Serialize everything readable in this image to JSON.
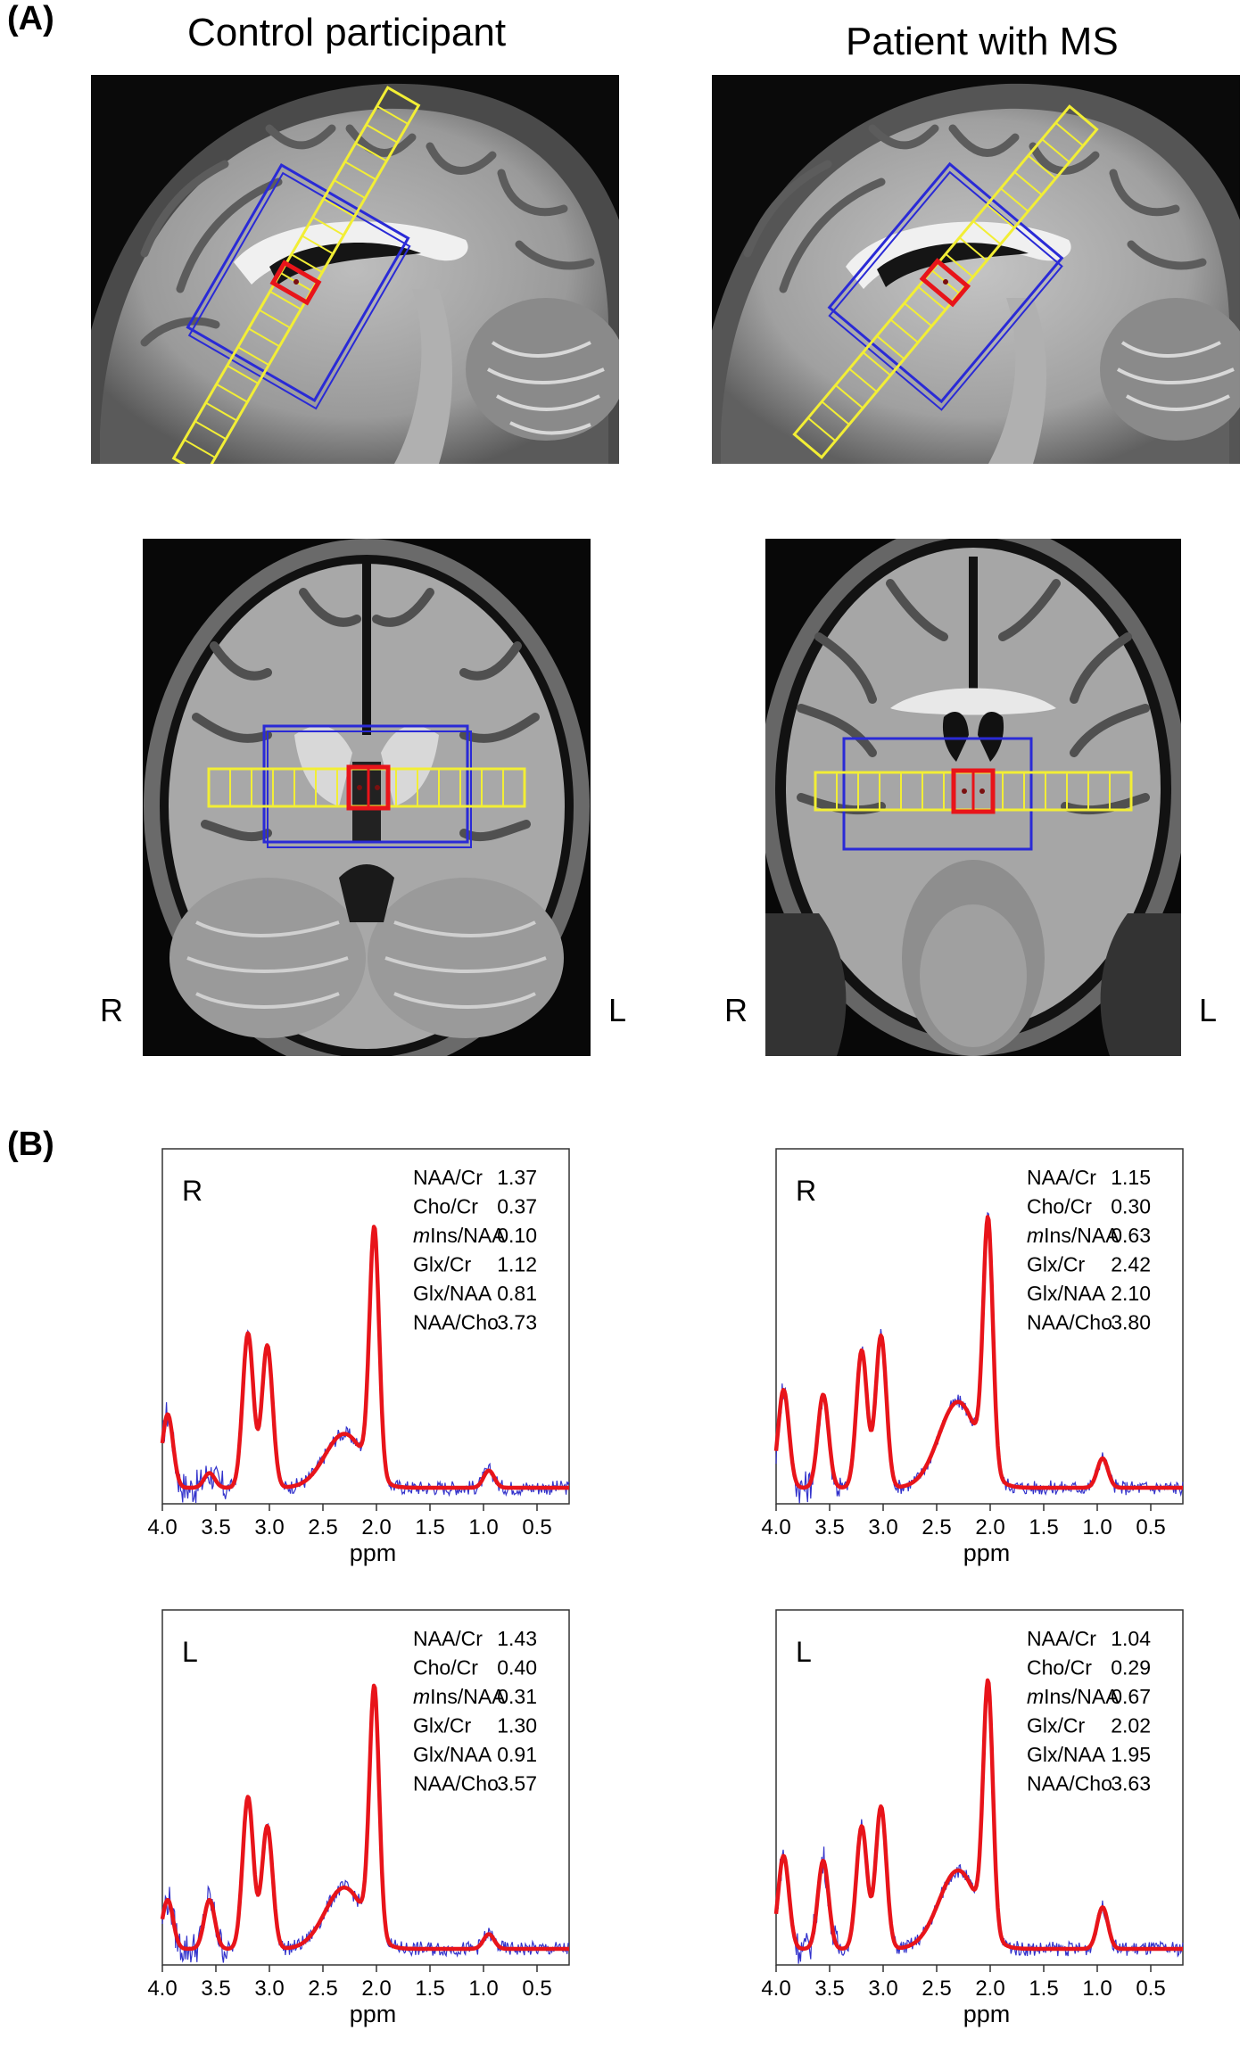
{
  "panel_a_label": "(A)",
  "panel_b_label": "(B)",
  "columns": [
    "Control participant",
    "Patient with MS"
  ],
  "side_labels": {
    "right": "R",
    "left": "L"
  },
  "colors": {
    "spectrum_raw": "#3333cc",
    "spectrum_fit": "#e8141a",
    "voi_yellow": "#f2ee35",
    "voi_blue": "#2a2ad6",
    "voi_red": "#e8141a"
  },
  "chart_data": [
    {
      "type": "line",
      "subject": "Control participant",
      "hemisphere_label": "R",
      "xlabel": "ppm",
      "xlim": [
        4.0,
        0.2
      ],
      "x_reversed": true,
      "x_ticks": [
        "4.0",
        "3.5",
        "3.0",
        "2.5",
        "2.0",
        "1.5",
        "1.0",
        "0.5"
      ],
      "peaks": [
        [
          3.95,
          0.3
        ],
        [
          3.56,
          0.06
        ],
        [
          3.2,
          0.63
        ],
        [
          3.02,
          0.58
        ],
        [
          2.3,
          0.22
        ],
        [
          2.02,
          1.0
        ],
        [
          0.95,
          0.07
        ]
      ],
      "ratios": [
        {
          "label": "NAA/Cr",
          "value": "1.37"
        },
        {
          "label": "Cho/Cr",
          "value": "0.37"
        },
        {
          "prefix": "m",
          "label": "Ins/NAA",
          "value": "0.10"
        },
        {
          "label": "Glx/Cr",
          "value": "1.12"
        },
        {
          "label": "Glx/NAA",
          "value": "0.81"
        },
        {
          "label": "NAA/Cho",
          "value": "3.73"
        }
      ]
    },
    {
      "type": "line",
      "subject": "Patient with MS",
      "hemisphere_label": "R",
      "xlabel": "ppm",
      "xlim": [
        4.0,
        0.2
      ],
      "x_reversed": true,
      "x_ticks": [
        "4.0",
        "3.5",
        "3.0",
        "2.5",
        "2.0",
        "1.5",
        "1.0",
        "0.5"
      ],
      "peaks": [
        [
          3.93,
          0.4
        ],
        [
          3.56,
          0.38
        ],
        [
          3.2,
          0.56
        ],
        [
          3.02,
          0.62
        ],
        [
          2.3,
          0.35
        ],
        [
          2.02,
          1.0
        ],
        [
          0.95,
          0.12
        ]
      ],
      "ratios": [
        {
          "label": "NAA/Cr",
          "value": "1.15"
        },
        {
          "label": "Cho/Cr",
          "value": "0.30"
        },
        {
          "prefix": "m",
          "label": "Ins/NAA",
          "value": "0.63"
        },
        {
          "label": "Glx/Cr",
          "value": "2.42"
        },
        {
          "label": "Glx/NAA",
          "value": "2.10"
        },
        {
          "label": "NAA/Cho",
          "value": "3.80"
        }
      ]
    },
    {
      "type": "line",
      "subject": "Control participant",
      "hemisphere_label": "L",
      "xlabel": "ppm",
      "xlim": [
        4.0,
        0.2
      ],
      "x_reversed": true,
      "x_ticks": [
        "4.0",
        "3.5",
        "3.0",
        "2.5",
        "2.0",
        "1.5",
        "1.0",
        "0.5"
      ],
      "peaks": [
        [
          3.95,
          0.2
        ],
        [
          3.56,
          0.2
        ],
        [
          3.2,
          0.62
        ],
        [
          3.02,
          0.5
        ],
        [
          2.3,
          0.25
        ],
        [
          2.02,
          1.0
        ],
        [
          0.95,
          0.06
        ]
      ],
      "ratios": [
        {
          "label": "NAA/Cr",
          "value": "1.43"
        },
        {
          "label": "Cho/Cr",
          "value": "0.40"
        },
        {
          "prefix": "m",
          "label": "Ins/NAA",
          "value": "0.31"
        },
        {
          "label": "Glx/Cr",
          "value": "1.30"
        },
        {
          "label": "Glx/NAA",
          "value": "0.91"
        },
        {
          "label": "NAA/Cho",
          "value": "3.57"
        }
      ]
    },
    {
      "type": "line",
      "subject": "Patient with MS",
      "hemisphere_label": "L",
      "xlabel": "ppm",
      "xlim": [
        4.0,
        0.2
      ],
      "x_reversed": true,
      "x_ticks": [
        "4.0",
        "3.5",
        "3.0",
        "2.5",
        "2.0",
        "1.5",
        "1.0",
        "0.5"
      ],
      "peaks": [
        [
          3.93,
          0.38
        ],
        [
          3.56,
          0.36
        ],
        [
          3.2,
          0.5
        ],
        [
          3.02,
          0.58
        ],
        [
          2.3,
          0.32
        ],
        [
          2.02,
          1.0
        ],
        [
          0.95,
          0.17
        ]
      ],
      "ratios": [
        {
          "label": "NAA/Cr",
          "value": "1.04"
        },
        {
          "label": "Cho/Cr",
          "value": "0.29"
        },
        {
          "prefix": "m",
          "label": "Ins/NAA",
          "value": "0.67"
        },
        {
          "label": "Glx/Cr",
          "value": "2.02"
        },
        {
          "label": "Glx/NAA",
          "value": "1.95"
        },
        {
          "label": "NAA/Cho",
          "value": "3.63"
        }
      ]
    }
  ]
}
